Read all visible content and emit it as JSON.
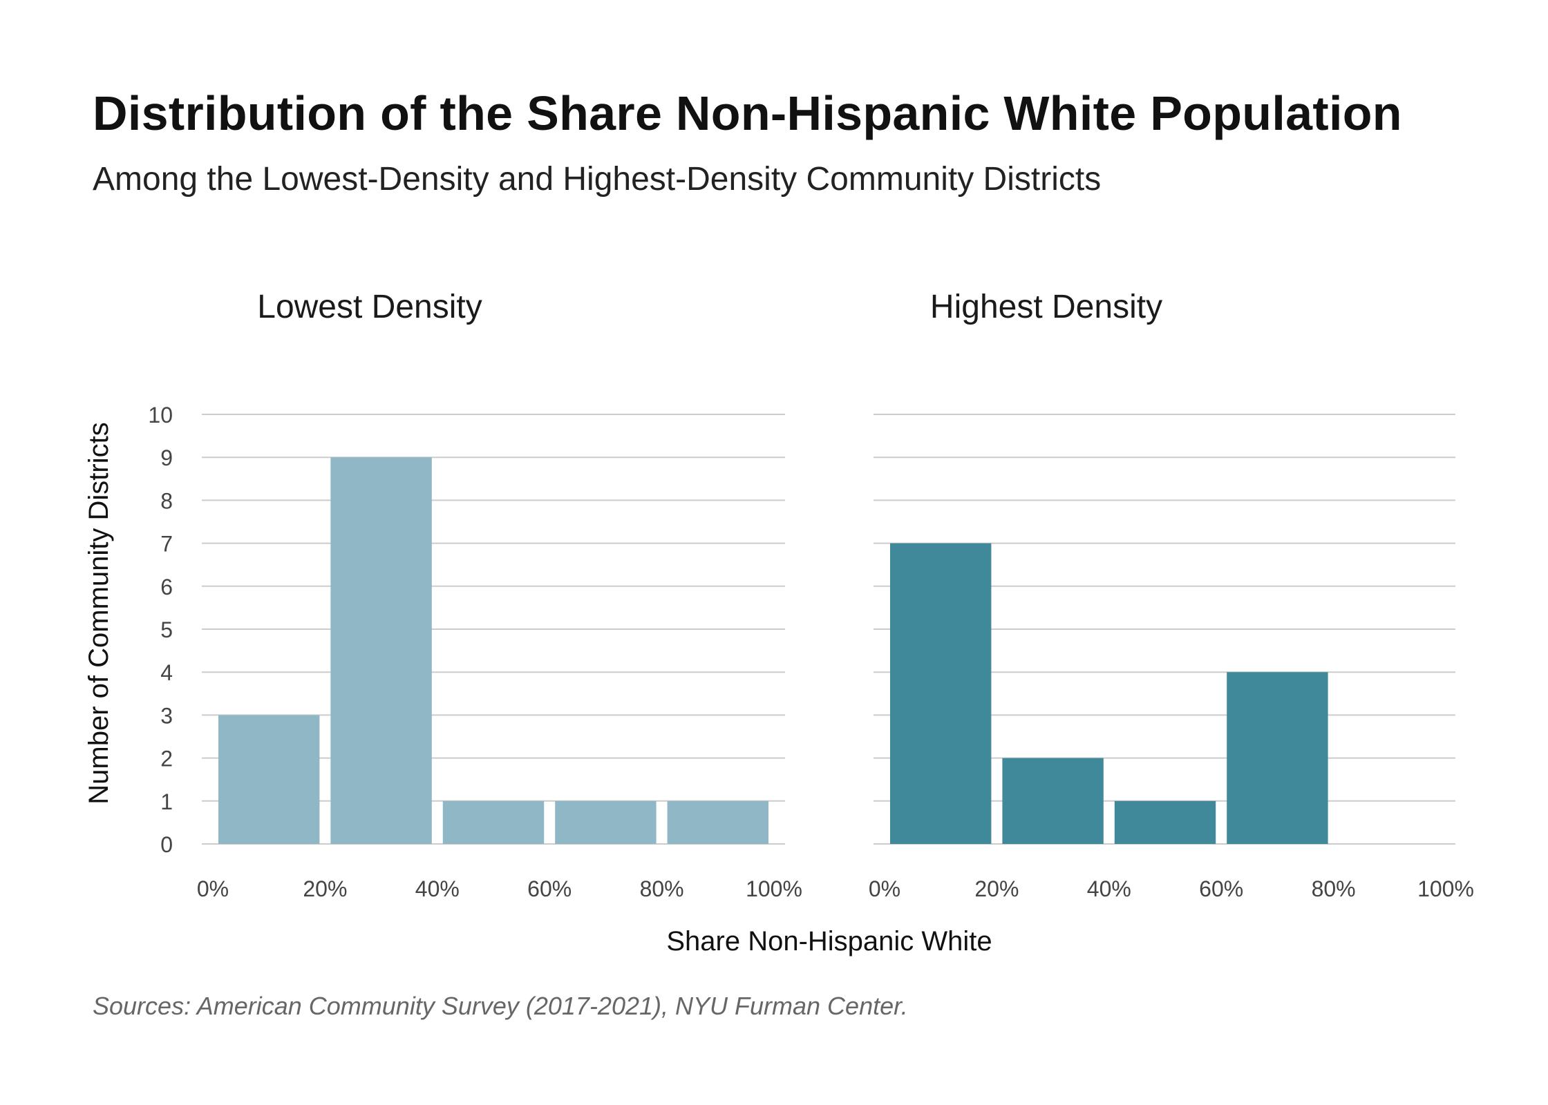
{
  "chart_data": {
    "type": "bar",
    "title": "Distribution of the Share Non-Hispanic White Population",
    "subtitle": "Among the Lowest-Density and Highest-Density Community Districts",
    "xlabel": "Share Non-Hispanic White",
    "ylabel": "Number of Community Districts",
    "source": "Sources: American Community Survey (2017-2021), NYU Furman Center.",
    "ylim": [
      0,
      10
    ],
    "yticks": [
      "0",
      "1",
      "2",
      "3",
      "4",
      "5",
      "6",
      "7",
      "8",
      "9",
      "10"
    ],
    "xticks": [
      "0%",
      "20%",
      "40%",
      "60%",
      "80%",
      "100%"
    ],
    "grid": true,
    "panels": [
      {
        "title": "Lowest Density",
        "color": "#8fb7c5",
        "bins": [
          {
            "from": 0,
            "to": 20,
            "value": 3
          },
          {
            "from": 20,
            "to": 40,
            "value": 9
          },
          {
            "from": 40,
            "to": 60,
            "value": 1
          },
          {
            "from": 60,
            "to": 80,
            "value": 1
          },
          {
            "from": 80,
            "to": 100,
            "value": 1
          }
        ]
      },
      {
        "title": "Highest Density",
        "color": "#40899a",
        "bins": [
          {
            "from": 0,
            "to": 20,
            "value": 7
          },
          {
            "from": 20,
            "to": 40,
            "value": 2
          },
          {
            "from": 40,
            "to": 60,
            "value": 1
          },
          {
            "from": 60,
            "to": 80,
            "value": 4
          },
          {
            "from": 80,
            "to": 100,
            "value": 0
          }
        ]
      }
    ]
  }
}
